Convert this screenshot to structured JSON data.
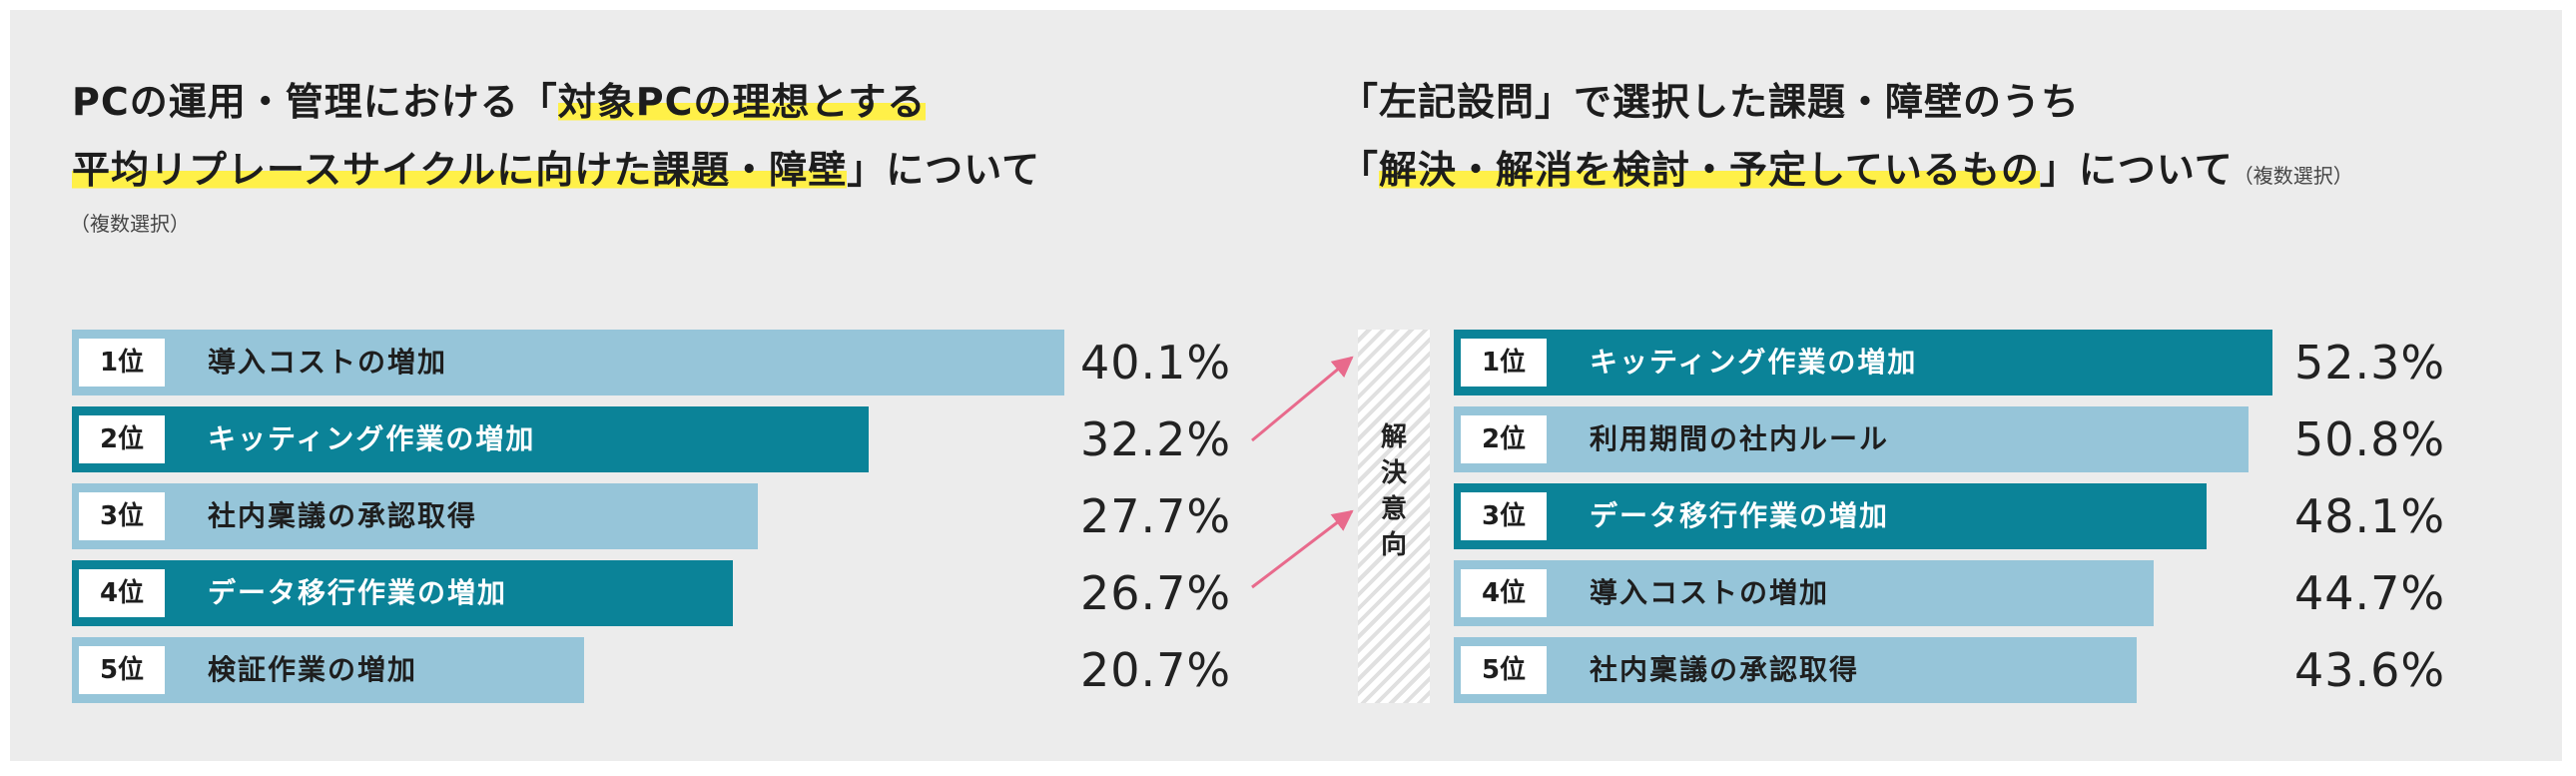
{
  "left": {
    "title_line1_plain": "PCの運用・管理における「",
    "title_line1_hl": "対象PCの理想とする",
    "title_line2_hl": "平均リプレースサイクルに向けた課題・障壁",
    "title_line2_plain": "」について",
    "note": "（複数選択）"
  },
  "right": {
    "title_line1_plain": "「左記設問」で選択した課題・障壁のうち",
    "title_line2_open": "「",
    "title_line2_hl": "解決・解消を検討・予定しているもの",
    "title_line2_plain": "」について",
    "note": "（複数選択）"
  },
  "divider_label": "解決意向",
  "colors": {
    "dark": "#0b8398",
    "light": "#96c5d9",
    "highlight": "#fff048",
    "arrow": "#e86a8c"
  },
  "chart_data": [
    {
      "type": "bar",
      "orientation": "horizontal",
      "title": "PCの運用・管理における「対象PCの理想とする平均リプレースサイクルに向けた課題・障壁」について（複数選択）",
      "ranks": [
        "1位",
        "2位",
        "3位",
        "4位",
        "5位"
      ],
      "categories": [
        "導入コストの増加",
        "キッティング作業の増加",
        "社内稟議の承認取得",
        "データ移行作業の増加",
        "検証作業の増加"
      ],
      "values": [
        40.1,
        32.2,
        27.7,
        26.7,
        20.7
      ],
      "labels": [
        "40.1%",
        "32.2%",
        "27.7%",
        "26.7%",
        "20.7%"
      ],
      "highlighted": [
        false,
        true,
        false,
        true,
        false
      ],
      "xlim": [
        0,
        40.1
      ]
    },
    {
      "type": "bar",
      "orientation": "horizontal",
      "title": "「左記設問」で選択した課題・障壁のうち「解決・解消を検討・予定しているもの」について（複数選択）",
      "ranks": [
        "1位",
        "2位",
        "3位",
        "4位",
        "5位"
      ],
      "categories": [
        "キッティング作業の増加",
        "利用期間の社内ルール",
        "データ移行作業の増加",
        "導入コストの増加",
        "社内稟議の承認取得"
      ],
      "values": [
        52.3,
        50.8,
        48.1,
        44.7,
        43.6
      ],
      "labels": [
        "52.3%",
        "50.8%",
        "48.1%",
        "44.7%",
        "43.6%"
      ],
      "highlighted": [
        true,
        false,
        true,
        false,
        false
      ],
      "xlim": [
        0,
        52.3
      ]
    }
  ]
}
